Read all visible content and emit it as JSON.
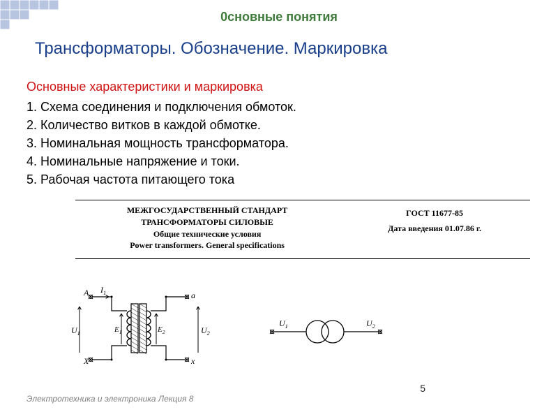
{
  "header": {
    "text": "0сновные  понятия",
    "color": "#3e7a3a"
  },
  "title": {
    "text": "Трансформаторы. Обозначение. Маркировка",
    "color": "#1a3f8a"
  },
  "section_heading": {
    "text": "Основные характеристики и маркировка",
    "color": "#d01414"
  },
  "list_items": [
    "1.  Схема соединения и подключения обмоток.",
    "2.  Количество витков в каждой обмотке.",
    "3.  Номинальная мощность трансформатора.",
    "4.  Номинальные напряжение и токи.",
    "5.  Рабочая частота питающего тока"
  ],
  "standard": {
    "left_lines": [
      "МЕЖГОСУДАРСТВЕННЫЙ СТАНДАРТ",
      "ТРАНСФОРМАТОРЫ СИЛОВЫЕ",
      "Общие технические условия",
      "Power transformers. General specifications"
    ],
    "right_lines": [
      "ГОСТ 11677-85",
      "Дата введения 01.07.86 г."
    ]
  },
  "footer": "Электротехника и электроника  Лекция 8",
  "page_number": "5",
  "corner_squares": {
    "fill": "#b8c5e0",
    "stroke": "#ffffff",
    "cells": [
      [
        0,
        0
      ],
      [
        1,
        0
      ],
      [
        2,
        0
      ],
      [
        3,
        0
      ],
      [
        4,
        0
      ],
      [
        5,
        0
      ],
      [
        0,
        1
      ],
      [
        1,
        1
      ],
      [
        2,
        1
      ],
      [
        0,
        2
      ]
    ],
    "size": 14
  },
  "diagram1": {
    "labels": {
      "A": "A",
      "a": "a",
      "X": "X",
      "x": "x",
      "I1": "I",
      "I1sub": "1",
      "U1": "U",
      "U1sub": "1",
      "U2": "U",
      "U2sub": "2",
      "E1": "E",
      "E1sub": "1",
      "E2": "E",
      "E2sub": "2"
    }
  },
  "diagram2": {
    "labels": {
      "U1": "U",
      "U1sub": "1",
      "U2": "U",
      "U2sub": "2"
    }
  }
}
